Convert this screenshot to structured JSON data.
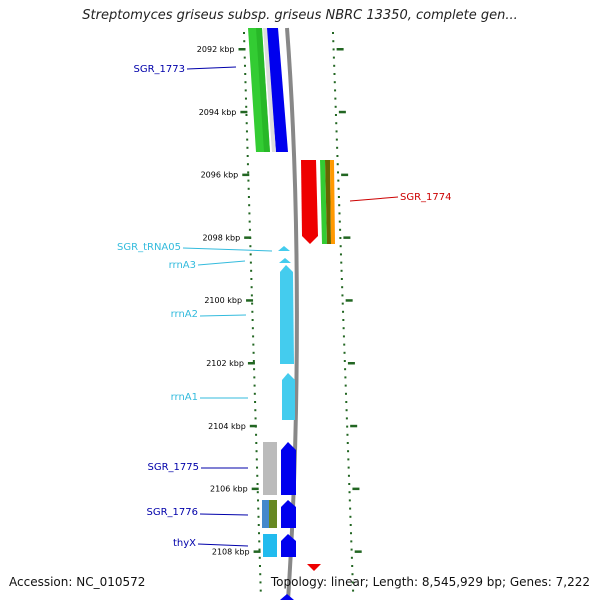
{
  "title": "Streptomyces griseus subsp. griseus NBRC 13350, complete gen...",
  "ticks": [
    {
      "label": "2092 kbp",
      "kbp": 2092
    },
    {
      "label": "2094 kbp",
      "kbp": 2094
    },
    {
      "label": "2096 kbp",
      "kbp": 2096
    },
    {
      "label": "2098 kbp",
      "kbp": 2098
    },
    {
      "label": "2100 kbp",
      "kbp": 2100
    },
    {
      "label": "2102 kbp",
      "kbp": 2102
    },
    {
      "label": "2104 kbp",
      "kbp": 2104
    },
    {
      "label": "2106 kbp",
      "kbp": 2106
    },
    {
      "label": "2108 kbp",
      "kbp": 2108
    }
  ],
  "genes": [
    {
      "label": "SGR_1773",
      "color": "#0000aa"
    },
    {
      "label": "SGR_1774",
      "color": "#cc0000"
    },
    {
      "label": "SGR_tRNA05",
      "color": "#33bbdd"
    },
    {
      "label": "rrnA3",
      "color": "#33bbdd"
    },
    {
      "label": "rrnA2",
      "color": "#33bbdd"
    },
    {
      "label": "rrnA1",
      "color": "#33bbdd"
    },
    {
      "label": "SGR_1775",
      "color": "#0000aa"
    },
    {
      "label": "SGR_1776",
      "color": "#0000aa"
    },
    {
      "label": "thyX",
      "color": "#0000aa"
    }
  ],
  "colors": {
    "gc_green": "#33cc33",
    "forward_blue": "#0000ee",
    "rna_cyan": "#44ccee",
    "reverse_red": "#ee0000",
    "track_grey": "#888888",
    "tick_green": "#226622"
  },
  "footer": {
    "accession": "Accession: NC_010572",
    "summary": "Topology: linear; Length: 8,545,929 bp; Genes: 7,222"
  }
}
